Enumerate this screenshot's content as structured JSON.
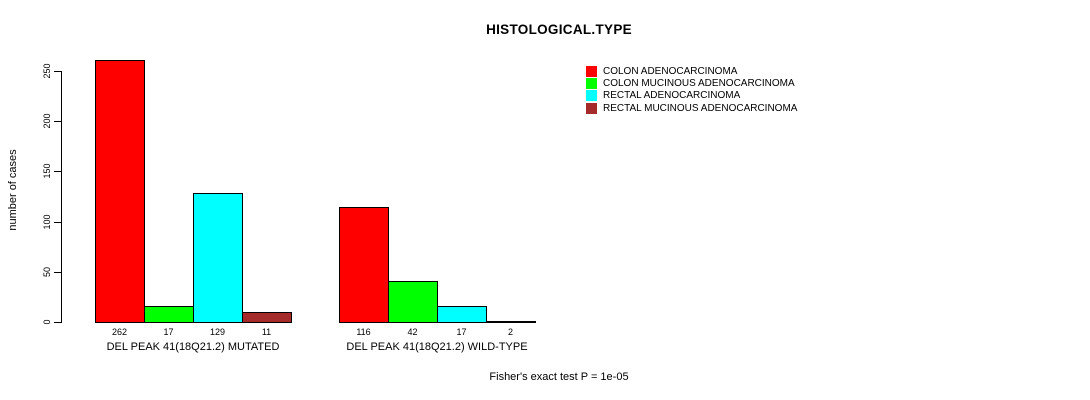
{
  "chart_data": {
    "type": "bar",
    "title": "HISTOLOGICAL.TYPE",
    "ylabel": "number of cases",
    "ylim": [
      0,
      250
    ],
    "yticks": [
      0,
      50,
      100,
      150,
      200,
      250
    ],
    "categories": [
      "DEL PEAK 41(18Q21.2) MUTATED",
      "DEL PEAK 41(18Q21.2) WILD-TYPE"
    ],
    "series": [
      {
        "name": "COLON ADENOCARCINOMA",
        "color": "#ff0000",
        "values": [
          262,
          116
        ]
      },
      {
        "name": "COLON MUCINOUS ADENOCARCINOMA",
        "color": "#00ff00",
        "values": [
          17,
          42
        ]
      },
      {
        "name": "RECTAL ADENOCARCINOMA",
        "color": "#00ffff",
        "values": [
          129,
          17
        ]
      },
      {
        "name": "RECTAL MUCINOUS ADENOCARCINOMA",
        "color": "#a52a2a",
        "values": [
          11,
          2
        ]
      }
    ],
    "bar_value_labels": [
      [
        262,
        17,
        129,
        11
      ],
      [
        116,
        42,
        17,
        2
      ]
    ],
    "legend_position": "top-right",
    "grid": false,
    "bar_border_color": "#000000",
    "background_color": "#ffffff",
    "annotation": "Fisher's exact test P = 1e-05"
  }
}
